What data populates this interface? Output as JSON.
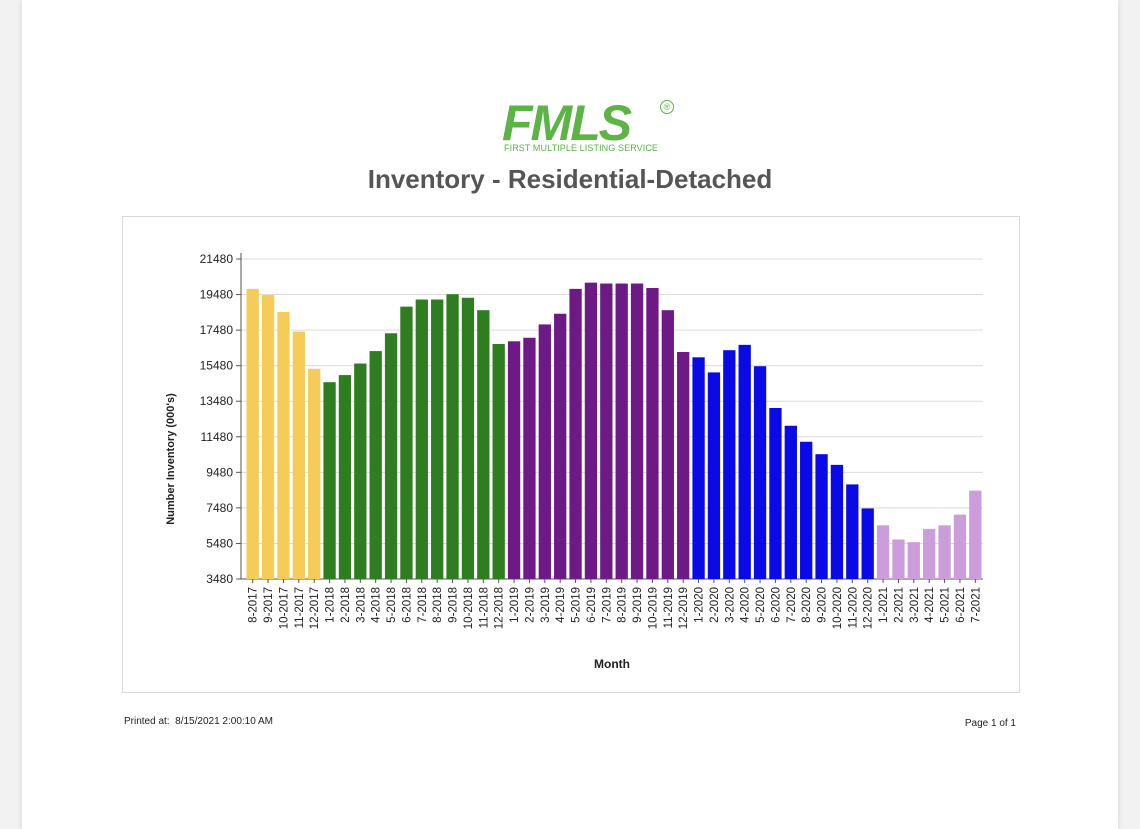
{
  "logo": {
    "mark_text": "FMLS",
    "registered": "®",
    "subtitle": "FIRST MULTIPLE LISTING SERVICE"
  },
  "footer": {
    "printed_label": "Printed at:",
    "printed_value": "8/15/2021 2:00:10 AM",
    "page_text": "Page 1 of 1"
  },
  "colors": {
    "yellow": "#f5cc58",
    "green": "#2e7d20",
    "purple": "#6e1a86",
    "blue": "#0a0ae6",
    "lilac": "#cc9ddb"
  },
  "chart_data": {
    "type": "bar",
    "title": "Inventory - Residential-Detached",
    "xlabel": "Month",
    "ylabel": "Number Inventory (000's)",
    "ylim": [
      3480,
      21480
    ],
    "yticks": [
      3480,
      5480,
      7480,
      9480,
      11480,
      13480,
      15480,
      17480,
      19480,
      21480
    ],
    "grid": true,
    "legend": "none",
    "categories": [
      "8-2017",
      "9-2017",
      "10-2017",
      "11-2017",
      "12-2017",
      "1-2018",
      "2-2018",
      "3-2018",
      "4-2018",
      "5-2018",
      "6-2018",
      "7-2018",
      "8-2018",
      "9-2018",
      "10-2018",
      "11-2018",
      "12-2018",
      "1-2019",
      "2-2019",
      "3-2019",
      "4-2019",
      "5-2019",
      "6-2019",
      "7-2019",
      "8-2019",
      "9-2019",
      "10-2019",
      "11-2019",
      "12-2019",
      "1-2020",
      "2-2020",
      "3-2020",
      "4-2020",
      "5-2020",
      "6-2020",
      "7-2020",
      "8-2020",
      "9-2020",
      "10-2020",
      "11-2020",
      "12-2020",
      "1-2021",
      "2-2021",
      "3-2021",
      "4-2021",
      "5-2021",
      "6-2021",
      "7-2021"
    ],
    "values": [
      19800,
      19450,
      18500,
      17400,
      15300,
      14550,
      14950,
      15600,
      16300,
      17300,
      18800,
      19200,
      19200,
      19500,
      19300,
      18600,
      16700,
      16850,
      17050,
      17800,
      18400,
      19800,
      20150,
      20100,
      20100,
      20100,
      19850,
      18600,
      16250,
      15950,
      15100,
      16350,
      16650,
      15450,
      13100,
      12100,
      11200,
      10500,
      9900,
      8800,
      7450,
      6500,
      5700,
      5550,
      6300,
      6500,
      7100,
      8450
    ],
    "bar_colors": [
      "yellow",
      "yellow",
      "yellow",
      "yellow",
      "yellow",
      "green",
      "green",
      "green",
      "green",
      "green",
      "green",
      "green",
      "green",
      "green",
      "green",
      "green",
      "green",
      "purple",
      "purple",
      "purple",
      "purple",
      "purple",
      "purple",
      "purple",
      "purple",
      "purple",
      "purple",
      "purple",
      "purple",
      "blue",
      "blue",
      "blue",
      "blue",
      "blue",
      "blue",
      "blue",
      "blue",
      "blue",
      "blue",
      "blue",
      "blue",
      "lilac",
      "lilac",
      "lilac",
      "lilac",
      "lilac",
      "lilac",
      "lilac"
    ]
  }
}
